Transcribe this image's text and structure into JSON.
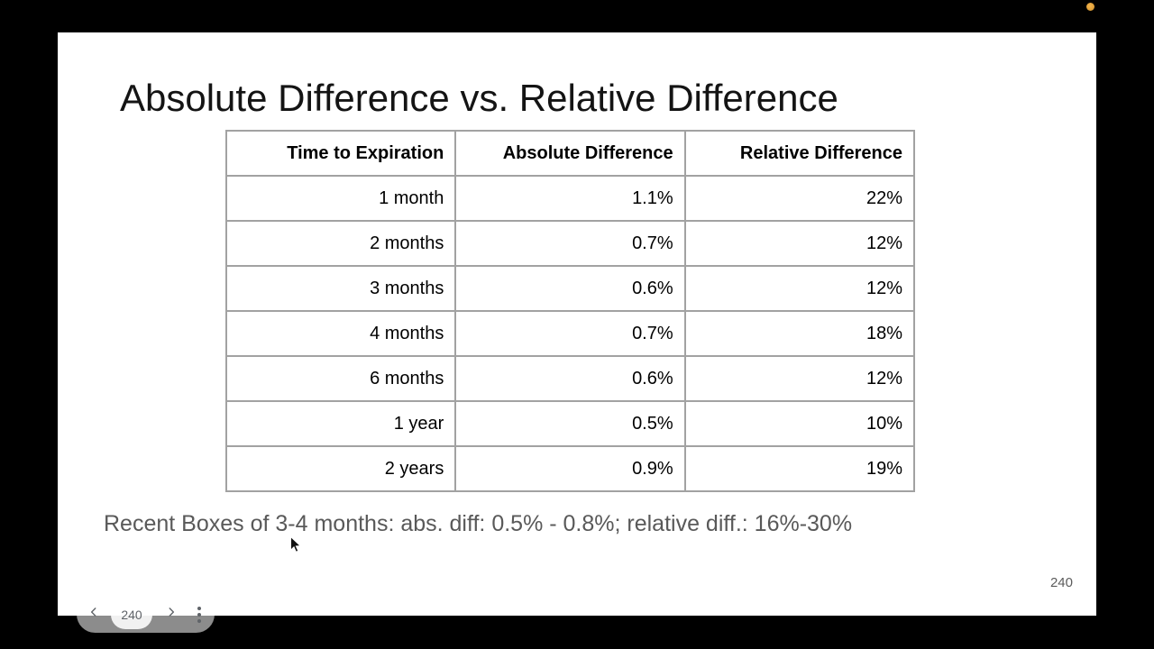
{
  "slide": {
    "title": "Absolute Difference vs. Relative Difference",
    "table": {
      "headers": [
        "Time to Expiration",
        "Absolute Difference",
        "Relative Difference"
      ],
      "rows": [
        [
          "1 month",
          "1.1%",
          "22%"
        ],
        [
          "2 months",
          "0.7%",
          "12%"
        ],
        [
          "3 months",
          "0.6%",
          "12%"
        ],
        [
          "4 months",
          "0.7%",
          "18%"
        ],
        [
          "6 months",
          "0.6%",
          "12%"
        ],
        [
          "1 year",
          "0.5%",
          "10%"
        ],
        [
          "2 years",
          "0.9%",
          "19%"
        ]
      ]
    },
    "note": "Recent Boxes of 3-4 months: abs. diff: 0.5% - 0.8%; relative diff.: 16%-30%",
    "page_number": "240"
  },
  "controls": {
    "counter": "240",
    "icons": {
      "prev": "chevron-left-icon",
      "next": "chevron-right-icon",
      "menu": "vertical-dots-icon"
    }
  },
  "indicators": {
    "recording_dot_color": "#e0a03a"
  },
  "colors": {
    "table_border": "#a2a2a2",
    "note_text": "#595959",
    "background": "#000000",
    "slide_background": "#ffffff"
  }
}
